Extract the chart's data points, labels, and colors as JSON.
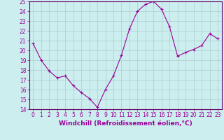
{
  "x": [
    0,
    1,
    2,
    3,
    4,
    5,
    6,
    7,
    8,
    9,
    10,
    11,
    12,
    13,
    14,
    15,
    16,
    17,
    18,
    19,
    20,
    21,
    22,
    23
  ],
  "y": [
    20.7,
    19.0,
    17.9,
    17.2,
    17.4,
    16.4,
    15.7,
    15.1,
    14.2,
    16.0,
    17.4,
    19.5,
    22.2,
    24.0,
    24.7,
    25.0,
    24.2,
    22.4,
    19.4,
    19.8,
    20.1,
    20.5,
    21.7,
    21.2
  ],
  "line_color": "#990099",
  "marker": "+",
  "marker_size": 3,
  "linewidth": 0.8,
  "background_color": "#cceeee",
  "grid_color": "#aacccc",
  "xlabel": "Windchill (Refroidissement éolien,°C)",
  "xlabel_color": "#990099",
  "ylim": [
    14,
    25
  ],
  "xlim_min": -0.5,
  "xlim_max": 23.5,
  "yticks": [
    14,
    15,
    16,
    17,
    18,
    19,
    20,
    21,
    22,
    23,
    24,
    25
  ],
  "xticks": [
    0,
    1,
    2,
    3,
    4,
    5,
    6,
    7,
    8,
    9,
    10,
    11,
    12,
    13,
    14,
    15,
    16,
    17,
    18,
    19,
    20,
    21,
    22,
    23
  ],
  "tick_label_color": "#990099",
  "tick_label_fontsize": 5.5,
  "xlabel_fontsize": 6.5,
  "spine_color": "#660066"
}
